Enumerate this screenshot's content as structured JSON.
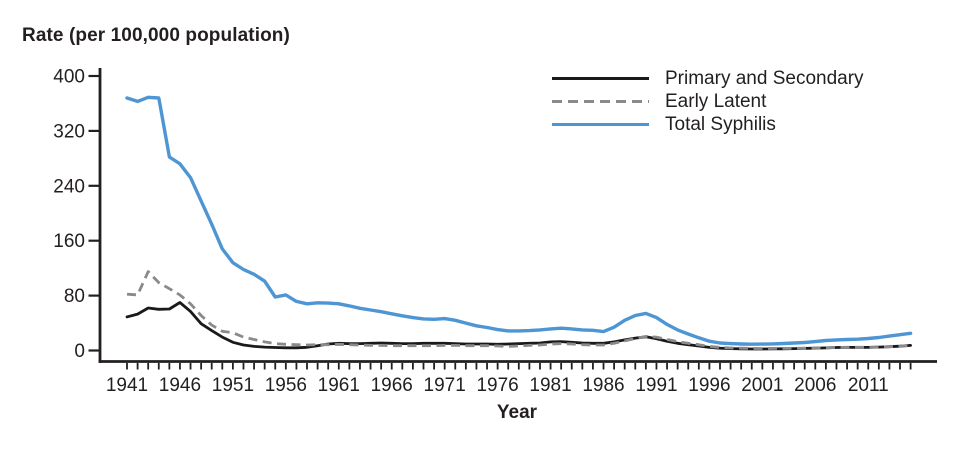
{
  "chart_data": {
    "type": "line",
    "title": "Rate (per 100,000 population)",
    "xlabel": "Year",
    "ylabel": "Rate (per 100,000 population)",
    "xlim": [
      1941,
      2015
    ],
    "ylim": [
      0,
      400
    ],
    "yticks": [
      0,
      80,
      160,
      240,
      320,
      400
    ],
    "xtick_step": 1,
    "xtick_label_years": [
      1941,
      1946,
      1951,
      1956,
      1961,
      1966,
      1971,
      1976,
      1981,
      1986,
      1991,
      1996,
      2001,
      2006,
      2011
    ],
    "grid": false,
    "legend_position": "top-right",
    "series": [
      {
        "name": "Primary and Secondary",
        "color": "#1a1a1a",
        "line_style": "solid",
        "stroke_width": 2.8,
        "values": [
          49,
          53,
          62,
          60,
          60.5,
          70,
          57,
          39,
          29,
          19.5,
          12,
          8,
          6,
          4.9,
          4.3,
          3.9,
          4,
          4.6,
          7,
          9.5,
          10.5,
          10,
          10,
          10.5,
          11,
          10.5,
          10,
          10,
          10.5,
          10.5,
          10.5,
          10,
          9.5,
          9.5,
          9.5,
          9,
          9.5,
          10,
          10.5,
          11,
          12.5,
          13,
          12,
          11,
          10.5,
          10.5,
          12.5,
          15.5,
          18,
          20,
          17,
          13.5,
          10.5,
          8.5,
          6.5,
          4.5,
          3.3,
          2.7,
          2.5,
          2.2,
          2.2,
          2.4,
          2.5,
          2.7,
          3,
          3.3,
          3.8,
          4.4,
          4.5,
          4.5,
          4.5,
          5,
          5.5,
          6.3,
          7.5
        ]
      },
      {
        "name": "Early Latent",
        "color": "#8a8a8d",
        "line_style": "dashed",
        "stroke_width": 2.8,
        "values": [
          82,
          81,
          115,
          99,
          90,
          81,
          68,
          51,
          37,
          28,
          26,
          19.5,
          16,
          12.5,
          10,
          9,
          8.5,
          8,
          8.5,
          8.5,
          9,
          8.5,
          8,
          7.5,
          7.5,
          7,
          7,
          7,
          7,
          7,
          7.5,
          7.5,
          7,
          7,
          7,
          6.5,
          6,
          6.5,
          7.5,
          8,
          9.5,
          10,
          9.5,
          8.5,
          8,
          8,
          10.5,
          14,
          17.5,
          20.5,
          19.5,
          16,
          13,
          10.5,
          8.5,
          6,
          4.5,
          3.7,
          3.3,
          3,
          2.9,
          3,
          3.1,
          3.2,
          3.3,
          3.5,
          4,
          4.5,
          4.6,
          4.6,
          4.7,
          5.1,
          5.5,
          6.4,
          7.4
        ]
      },
      {
        "name": "Total Syphilis",
        "color": "#4e96d3",
        "line_style": "solid",
        "stroke_width": 3.4,
        "values": [
          368,
          363,
          369,
          368,
          282,
          272,
          252,
          218,
          184,
          148,
          128,
          118,
          111,
          101,
          78,
          81,
          71.5,
          68,
          69.5,
          69,
          68,
          65,
          61.5,
          59,
          56.5,
          53.5,
          50.5,
          48,
          46,
          45.5,
          46.5,
          44,
          40,
          36,
          33.5,
          30.5,
          28.5,
          28.5,
          29,
          30,
          31.5,
          32.5,
          31.5,
          30,
          29.5,
          27.5,
          34,
          44,
          51,
          54,
          48,
          38,
          30,
          24,
          18.5,
          13.5,
          11,
          10,
          9.5,
          9.2,
          9.3,
          9.6,
          10.2,
          11,
          11.7,
          13,
          14.5,
          15.5,
          16,
          16.5,
          17.5,
          19,
          21,
          23,
          25
        ]
      }
    ]
  },
  "colors": {
    "background": "#ffffff",
    "axis": "#231f20",
    "text": "#231f20",
    "primary_and_secondary": "#1a1a1a",
    "early_latent": "#8a8a8d",
    "total_syphilis": "#4e96d3"
  }
}
